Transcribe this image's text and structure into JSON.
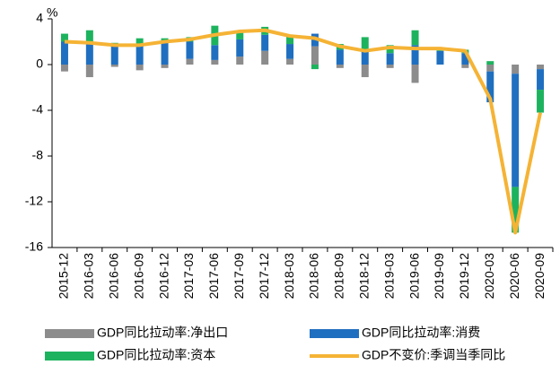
{
  "chart_data": {
    "type": "bar",
    "stacked": true,
    "y_unit": "%",
    "categories": [
      "2015-12",
      "2016-03",
      "2016-06",
      "2016-09",
      "2016-12",
      "2017-03",
      "2017-06",
      "2017-09",
      "2017-12",
      "2018-03",
      "2018-06",
      "2018-09",
      "2018-12",
      "2019-03",
      "2019-06",
      "2019-09",
      "2019-12",
      "2020-03",
      "2020-06",
      "2020-09"
    ],
    "series": [
      {
        "name": "GDP同比拉动率:净出口",
        "type": "bar",
        "color": "#8c8c8c",
        "values": [
          -0.6,
          -1.1,
          -0.2,
          -0.5,
          -0.3,
          0.5,
          0.4,
          0.7,
          1.2,
          0.5,
          1.6,
          -0.3,
          -1.1,
          -0.3,
          -1.6,
          0.0,
          -0.3,
          -0.6,
          -0.8,
          -0.4
        ]
      },
      {
        "name": "GDP同比拉动率:消费",
        "type": "bar",
        "color": "#1f6fc0",
        "values": [
          2.0,
          2.0,
          1.7,
          1.8,
          2.0,
          1.5,
          1.3,
          1.5,
          1.4,
          1.3,
          1.1,
          1.3,
          1.3,
          1.0,
          1.7,
          1.2,
          1.0,
          -2.7,
          -9.9,
          -1.8
        ]
      },
      {
        "name": "GDP同比拉动率:资本",
        "type": "bar",
        "color": "#1db35e",
        "values": [
          0.7,
          1.0,
          0.2,
          0.5,
          0.3,
          0.4,
          1.7,
          0.8,
          0.7,
          0.7,
          -0.4,
          0.5,
          1.1,
          0.7,
          1.3,
          0.1,
          0.3,
          0.3,
          -4.0,
          -2.0
        ]
      },
      {
        "name": "GDP不变价:季调当季同比",
        "type": "line",
        "color": "#f5b335",
        "values": [
          2.0,
          1.9,
          1.7,
          1.7,
          2.0,
          2.2,
          2.6,
          2.9,
          3.0,
          2.5,
          2.3,
          1.6,
          1.2,
          1.5,
          1.4,
          1.4,
          1.2,
          -3.0,
          -14.7,
          -4.2
        ]
      }
    ],
    "ylim": [
      -16,
      4
    ],
    "yticks": [
      -16,
      -12,
      -8,
      -4,
      0,
      4
    ]
  }
}
